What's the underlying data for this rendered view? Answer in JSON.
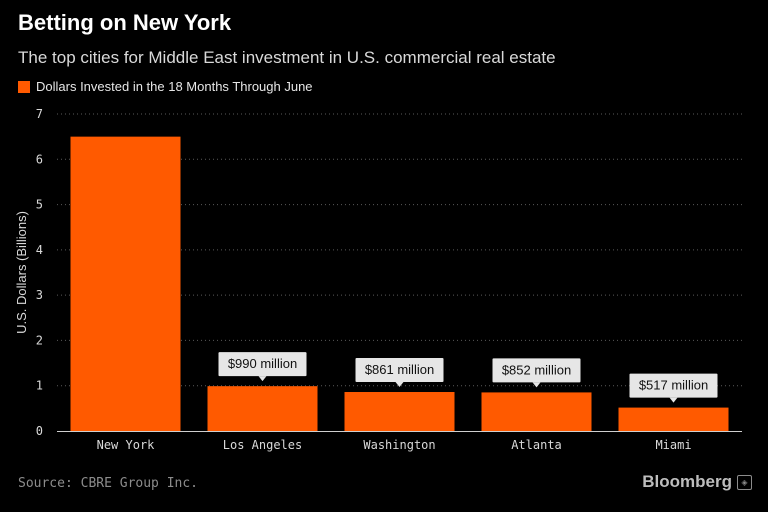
{
  "header": {
    "title": "Betting on New York",
    "subtitle": "The top cities for Middle East investment in U.S. commercial real estate"
  },
  "legend": {
    "label": "Dollars Invested in the 18 Months Through June"
  },
  "footer": {
    "source": "Source: CBRE Group Inc.",
    "brand": "Bloomberg",
    "brand_icon": "bloomberg-terminal-icon"
  },
  "colors": {
    "bar": "#ff5a00",
    "background": "#000000",
    "callout": "#e6e6e6"
  },
  "chart_data": {
    "type": "bar",
    "title": "Betting on New York",
    "subtitle": "The top cities for Middle East investment in U.S. commercial real estate",
    "xlabel": "",
    "ylabel": "U.S. Dollars (Billions)",
    "ylim": [
      0,
      7
    ],
    "yticks": [
      0,
      1,
      2,
      3,
      4,
      5,
      6,
      7
    ],
    "grid": true,
    "legend_position": "top-left",
    "categories": [
      "New York",
      "Los Angeles",
      "Washington",
      "Atlanta",
      "Miami"
    ],
    "series": [
      {
        "name": "Dollars Invested in the 18 Months Through June",
        "values": [
          6.5,
          0.99,
          0.861,
          0.852,
          0.517
        ]
      }
    ],
    "annotations": [
      "",
      "$990 million",
      "$861 million",
      "$852 million",
      "$517 million"
    ]
  }
}
